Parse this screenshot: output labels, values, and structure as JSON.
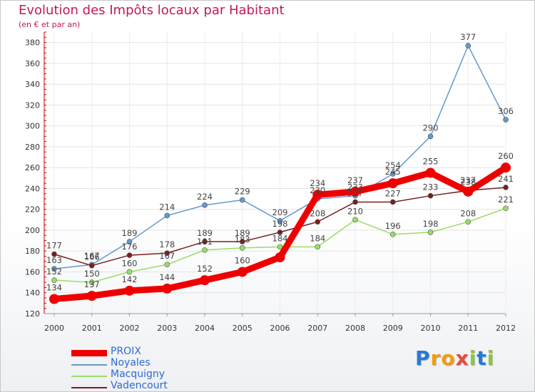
{
  "title": "Evolution des Impôts locaux par Habitant",
  "subtitle": "(en € et par an)",
  "logo": {
    "letters": [
      "P",
      "r",
      "o",
      "x",
      "i",
      "t",
      "i"
    ],
    "colors": [
      "#2a7ad5",
      "#f39c12",
      "#f39c12",
      "#e74c3c",
      "#8dc63f",
      "#2a7ad5",
      "#8dc63f"
    ]
  },
  "chart_data": {
    "type": "line",
    "title": "Evolution des Impôts locaux par Habitant",
    "subtitle": "(en € et par an)",
    "xlabel": "",
    "ylabel": "",
    "categories": [
      "2000",
      "2001",
      "2002",
      "2003",
      "2004",
      "2005",
      "2006",
      "2007",
      "2008",
      "2009",
      "2010",
      "2011",
      "2012"
    ],
    "ylim": [
      120,
      390
    ],
    "yticks": [
      120,
      140,
      160,
      180,
      200,
      220,
      240,
      260,
      280,
      300,
      320,
      340,
      360,
      380
    ],
    "grid": true,
    "legend_position": "bottom-left",
    "series": [
      {
        "name": "PROIX",
        "color": "#ee0000",
        "thick": true,
        "values": [
          134,
          137,
          142,
          144,
          152,
          160,
          174,
          234,
          237,
          245,
          255,
          237,
          260
        ],
        "labels": [
          "134",
          "137",
          "142",
          "144",
          "152",
          "160",
          "",
          "234",
          "237",
          "245",
          "255",
          "237",
          "260"
        ]
      },
      {
        "name": "Noyales",
        "color": "#6699cc",
        "thick": false,
        "values": [
          163,
          167,
          189,
          214,
          224,
          229,
          209,
          230,
          233,
          254,
          290,
          377,
          306
        ],
        "labels": [
          "163",
          "167",
          "189",
          "214",
          "224",
          "229",
          "209",
          "230",
          "233",
          "254",
          "290",
          "377",
          "306"
        ]
      },
      {
        "name": "Macquigny",
        "color": "#99dd66",
        "thick": false,
        "values": [
          152,
          150,
          160,
          167,
          181,
          183,
          184,
          184,
          210,
          196,
          198,
          208,
          221
        ],
        "labels": [
          "152",
          "150",
          "160",
          "167",
          "181",
          "183",
          "184",
          "184",
          "210",
          "196",
          "198",
          "208",
          "221"
        ]
      },
      {
        "name": "Vadencourt",
        "color": "#771f1f",
        "thick": false,
        "values": [
          177,
          166,
          176,
          178,
          189,
          189,
          198,
          208,
          227,
          227,
          233,
          238,
          241
        ],
        "labels": [
          "177",
          "166",
          "176",
          "178",
          "189",
          "189",
          "198",
          "208",
          "227",
          "227",
          "233",
          "238",
          "241"
        ]
      }
    ]
  }
}
